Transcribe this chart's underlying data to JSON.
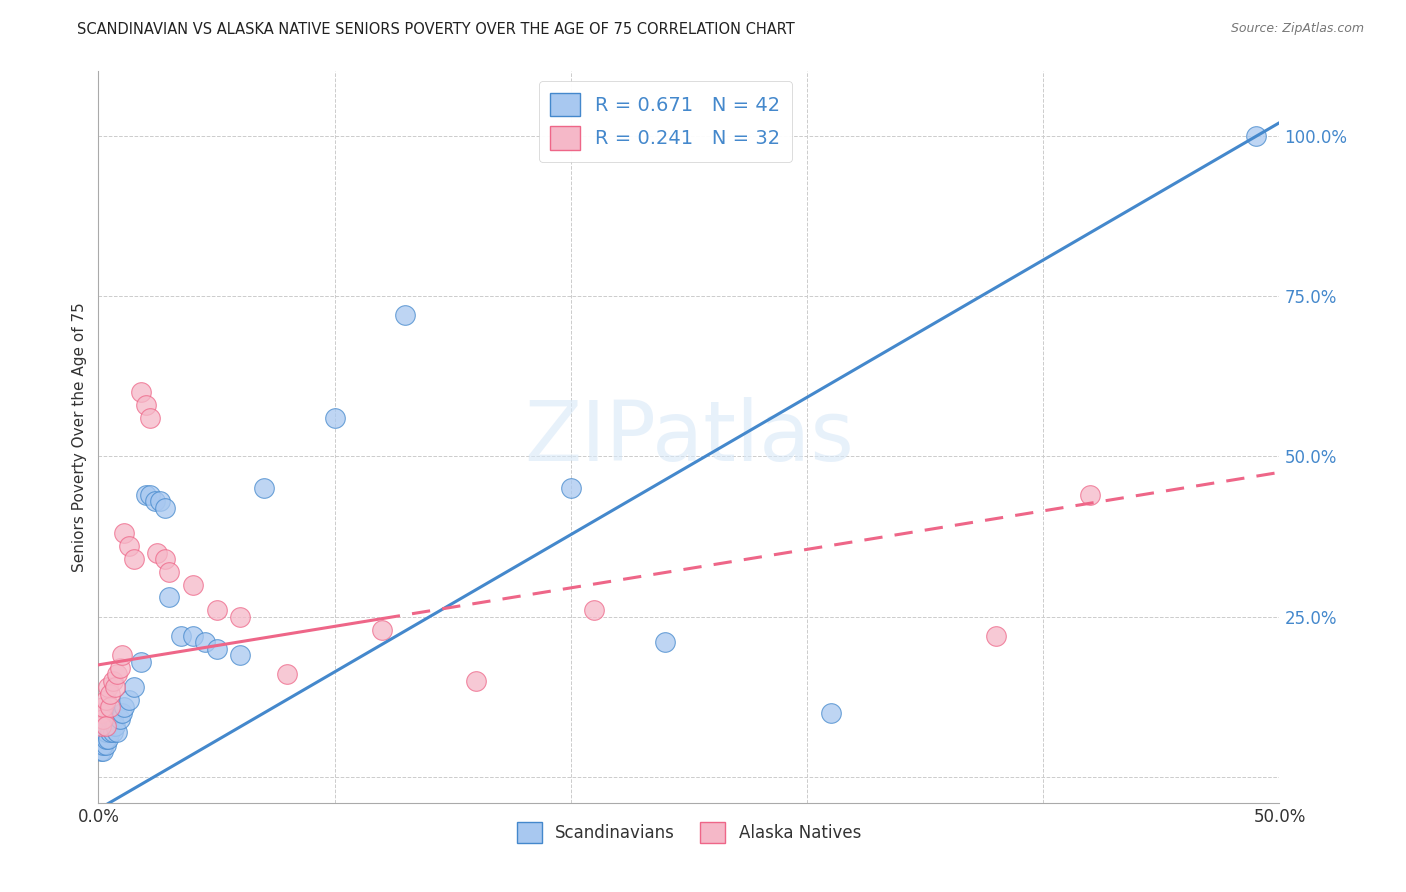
{
  "title": "SCANDINAVIAN VS ALASKA NATIVE SENIORS POVERTY OVER THE AGE OF 75 CORRELATION CHART",
  "source": "Source: ZipAtlas.com",
  "ylabel": "Seniors Poverty Over the Age of 75",
  "xlim": [
    0.0,
    0.5
  ],
  "ylim": [
    -0.04,
    1.1
  ],
  "blue_color": "#A8C8F0",
  "pink_color": "#F5B8C8",
  "blue_line_color": "#4488CC",
  "pink_line_color": "#EE6688",
  "blue_trend": [
    0.0,
    -0.05,
    0.5,
    1.02
  ],
  "pink_trend_solid": [
    0.0,
    0.17,
    0.175,
    0.195
  ],
  "pink_trend_dashed": [
    0.175,
    0.195,
    0.5,
    0.475
  ],
  "scandinavians_x": [
    0.001,
    0.001,
    0.001,
    0.002,
    0.002,
    0.002,
    0.003,
    0.003,
    0.003,
    0.004,
    0.004,
    0.005,
    0.005,
    0.006,
    0.006,
    0.007,
    0.008,
    0.009,
    0.01,
    0.011,
    0.013,
    0.015,
    0.018,
    0.02,
    0.022,
    0.024,
    0.026,
    0.028,
    0.03,
    0.035,
    0.04,
    0.045,
    0.05,
    0.06,
    0.07,
    0.1,
    0.13,
    0.2,
    0.24,
    0.31,
    0.49
  ],
  "scandinavians_y": [
    0.05,
    0.04,
    0.06,
    0.04,
    0.05,
    0.07,
    0.05,
    0.06,
    0.07,
    0.06,
    0.08,
    0.07,
    0.09,
    0.07,
    0.09,
    0.08,
    0.07,
    0.09,
    0.1,
    0.11,
    0.12,
    0.14,
    0.18,
    0.44,
    0.44,
    0.43,
    0.43,
    0.42,
    0.28,
    0.22,
    0.22,
    0.21,
    0.2,
    0.19,
    0.45,
    0.56,
    0.72,
    0.45,
    0.21,
    0.1,
    1.0
  ],
  "alaska_x": [
    0.001,
    0.001,
    0.002,
    0.002,
    0.003,
    0.003,
    0.004,
    0.005,
    0.005,
    0.006,
    0.007,
    0.008,
    0.009,
    0.01,
    0.011,
    0.013,
    0.015,
    0.018,
    0.02,
    0.022,
    0.025,
    0.028,
    0.03,
    0.04,
    0.05,
    0.06,
    0.08,
    0.12,
    0.16,
    0.21,
    0.38,
    0.42
  ],
  "alaska_y": [
    0.1,
    0.08,
    0.09,
    0.11,
    0.08,
    0.12,
    0.14,
    0.11,
    0.13,
    0.15,
    0.14,
    0.16,
    0.17,
    0.19,
    0.38,
    0.36,
    0.34,
    0.6,
    0.58,
    0.56,
    0.35,
    0.34,
    0.32,
    0.3,
    0.26,
    0.25,
    0.16,
    0.23,
    0.15,
    0.26,
    0.22,
    0.44
  ]
}
